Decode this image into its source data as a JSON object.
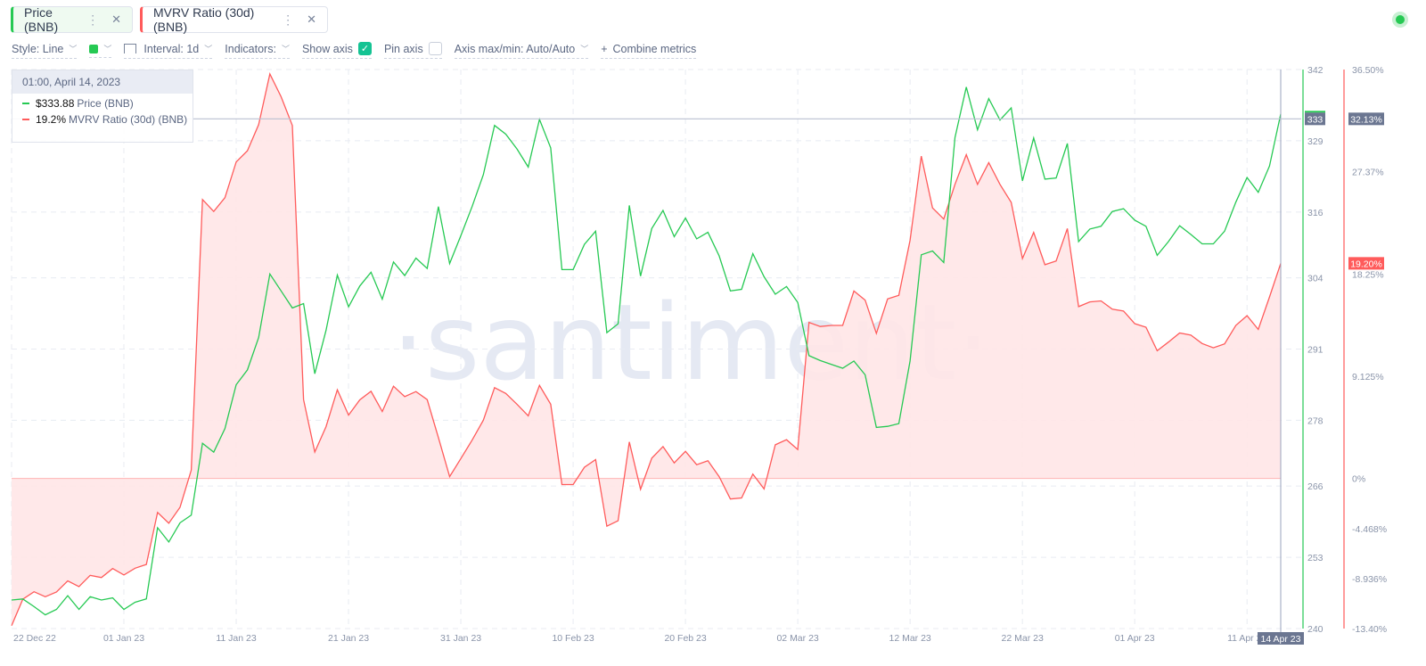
{
  "metrics": [
    {
      "label": "Price (BNB)",
      "color": "#26c953",
      "menu_icon": "vertical-dots-icon",
      "close_icon": "close-icon"
    },
    {
      "label": "MVRV Ratio (30d) (BNB)",
      "color": "#ff5b5b",
      "menu_icon": "vertical-dots-icon",
      "close_icon": "close-icon"
    }
  ],
  "toolbar": {
    "style": "Style: Line",
    "interval": "Interval: 1d",
    "indicators": "Indicators:",
    "show_axis": "Show axis",
    "show_axis_checked": true,
    "pin_axis": "Pin axis",
    "pin_axis_checked": false,
    "axis_maxmin": "Axis max/min: Auto/Auto",
    "combine": "Combine metrics",
    "combine_icon": "+"
  },
  "tooltip": {
    "datetime": "01:00, April 14, 2023",
    "rows": [
      {
        "value": "$333.88",
        "name": "Price (BNB)",
        "color": "#26c953"
      },
      {
        "value": "19.2%",
        "name": "MVRV Ratio (30d) (BNB)",
        "color": "#ff5b5b"
      }
    ]
  },
  "watermark": "·santiment·",
  "status": {
    "color": "#26c953"
  },
  "chart_data": {
    "type": "line",
    "x": [
      "2022-12-22",
      "2022-12-23",
      "2022-12-24",
      "2022-12-25",
      "2022-12-26",
      "2022-12-27",
      "2022-12-28",
      "2022-12-29",
      "2022-12-30",
      "2022-12-31",
      "2023-01-01",
      "2023-01-02",
      "2023-01-03",
      "2023-01-04",
      "2023-01-05",
      "2023-01-06",
      "2023-01-07",
      "2023-01-08",
      "2023-01-09",
      "2023-01-10",
      "2023-01-11",
      "2023-01-12",
      "2023-01-13",
      "2023-01-14",
      "2023-01-15",
      "2023-01-16",
      "2023-01-17",
      "2023-01-18",
      "2023-01-19",
      "2023-01-20",
      "2023-01-21",
      "2023-01-22",
      "2023-01-23",
      "2023-01-24",
      "2023-01-25",
      "2023-01-26",
      "2023-01-27",
      "2023-01-28",
      "2023-01-29",
      "2023-01-30",
      "2023-01-31",
      "2023-02-01",
      "2023-02-02",
      "2023-02-03",
      "2023-02-04",
      "2023-02-05",
      "2023-02-06",
      "2023-02-07",
      "2023-02-08",
      "2023-02-09",
      "2023-02-10",
      "2023-02-11",
      "2023-02-12",
      "2023-02-13",
      "2023-02-14",
      "2023-02-15",
      "2023-02-16",
      "2023-02-17",
      "2023-02-18",
      "2023-02-19",
      "2023-02-20",
      "2023-02-21",
      "2023-02-22",
      "2023-02-23",
      "2023-02-24",
      "2023-02-25",
      "2023-02-26",
      "2023-02-27",
      "2023-02-28",
      "2023-03-01",
      "2023-03-02",
      "2023-03-03",
      "2023-03-04",
      "2023-03-05",
      "2023-03-06",
      "2023-03-07",
      "2023-03-08",
      "2023-03-09",
      "2023-03-10",
      "2023-03-11",
      "2023-03-12",
      "2023-03-13",
      "2023-03-14",
      "2023-03-15",
      "2023-03-16",
      "2023-03-17",
      "2023-03-18",
      "2023-03-19",
      "2023-03-20",
      "2023-03-21",
      "2023-03-22",
      "2023-03-23",
      "2023-03-24",
      "2023-03-25",
      "2023-03-26",
      "2023-03-27",
      "2023-03-28",
      "2023-03-29",
      "2023-03-30",
      "2023-03-31",
      "2023-04-01",
      "2023-04-02",
      "2023-04-03",
      "2023-04-04",
      "2023-04-05",
      "2023-04-06",
      "2023-04-07",
      "2023-04-08",
      "2023-04-09",
      "2023-04-10",
      "2023-04-11",
      "2023-04-12",
      "2023-04-13",
      "2023-04-14"
    ],
    "series": [
      {
        "name": "Price (BNB)",
        "axis": "left-of-right",
        "color": "#26c953",
        "unit": "$",
        "values": [
          245.2,
          245.4,
          244.0,
          242.5,
          243.5,
          246.0,
          243.5,
          245.8,
          245.2,
          245.6,
          243.5,
          244.8,
          245.4,
          258.4,
          255.8,
          259.3,
          260.7,
          273.8,
          272.2,
          276.5,
          284.5,
          287.2,
          293.1,
          304.7,
          301.6,
          298.5,
          299.3,
          286.5,
          294.4,
          304.5,
          298.7,
          302.5,
          305.0,
          300.1,
          306.9,
          304.4,
          307.6,
          305.7,
          317.0,
          306.6,
          311.7,
          317.0,
          322.8,
          331.8,
          330.2,
          327.5,
          324.2,
          332.9,
          327.7,
          305.5,
          305.5,
          310.1,
          312.5,
          294.0,
          295.6,
          317.2,
          304.3,
          313.0,
          316.3,
          311.5,
          314.9,
          311.1,
          312.3,
          308.0,
          301.6,
          301.9,
          308.4,
          304.2,
          301.0,
          302.4,
          299.5,
          289.8,
          288.9,
          288.2,
          287.5,
          288.8,
          286.3,
          276.7,
          276.9,
          277.4,
          288.8,
          308.2,
          308.9,
          306.8,
          329.6,
          338.8,
          331.0,
          336.7,
          332.8,
          335.0,
          321.7,
          329.5,
          322.0,
          322.2,
          328.5,
          310.6,
          312.9,
          313.4,
          316.1,
          316.6,
          314.5,
          313.4,
          308.1,
          310.6,
          313.5,
          311.9,
          310.2,
          310.2,
          312.5,
          317.8,
          322.3,
          319.6,
          324.4,
          333.88
        ]
      },
      {
        "name": "MVRV Ratio (30d) (BNB)",
        "axis": "right",
        "color": "#ff5b5b",
        "unit": "%",
        "fill": "#ffe5e7",
        "values": [
          -13.14,
          -10.78,
          -10.11,
          -10.56,
          -10.14,
          -9.14,
          -9.65,
          -8.65,
          -8.85,
          -8.04,
          -8.62,
          -8.01,
          -7.68,
          -3.04,
          -4.0,
          -2.58,
          0.74,
          24.9,
          23.83,
          25.06,
          28.25,
          29.25,
          31.58,
          36.1,
          34.07,
          31.51,
          7.04,
          2.36,
          4.62,
          7.91,
          5.65,
          7.01,
          7.78,
          5.97,
          8.23,
          7.3,
          7.75,
          7.04,
          3.65,
          0.16,
          1.78,
          3.42,
          5.2,
          8.1,
          7.59,
          6.62,
          5.59,
          8.3,
          6.62,
          -0.55,
          -0.55,
          1.0,
          1.68,
          -4.26,
          -3.78,
          3.26,
          -0.97,
          1.81,
          2.84,
          1.39,
          2.42,
          1.23,
          1.58,
          0.16,
          -1.84,
          -1.74,
          0.39,
          -0.94,
          3.0,
          3.46,
          2.58,
          13.92,
          13.56,
          13.66,
          13.66,
          16.73,
          15.92,
          12.95,
          16.02,
          16.34,
          21.25,
          28.77,
          24.15,
          23.15,
          26.25,
          28.9,
          26.25,
          28.19,
          26.25,
          24.64,
          19.63,
          21.96,
          19.08,
          19.41,
          22.31,
          15.34,
          15.76,
          15.85,
          15.11,
          14.95,
          13.82,
          13.5,
          11.4,
          12.17,
          12.98,
          12.79,
          12.04,
          11.66,
          12.01,
          13.66,
          14.53,
          13.3,
          16.2,
          19.2
        ]
      }
    ],
    "x_ticks": [
      {
        "date": "2022-12-22",
        "label": "22 Dec 22"
      },
      {
        "date": "2023-01-01",
        "label": "01 Jan 23"
      },
      {
        "date": "2023-01-11",
        "label": "11 Jan 23"
      },
      {
        "date": "2023-01-21",
        "label": "21 Jan 23"
      },
      {
        "date": "2023-01-31",
        "label": "31 Jan 23"
      },
      {
        "date": "2023-02-10",
        "label": "10 Feb 23"
      },
      {
        "date": "2023-02-20",
        "label": "20 Feb 23"
      },
      {
        "date": "2023-03-02",
        "label": "02 Mar 23"
      },
      {
        "date": "2023-03-12",
        "label": "12 Mar 23"
      },
      {
        "date": "2023-03-22",
        "label": "22 Mar 23"
      },
      {
        "date": "2023-04-01",
        "label": "01 Apr 23"
      },
      {
        "date": "2023-04-11",
        "label": "11 Apr 23"
      }
    ],
    "price_axis": {
      "range": [
        240,
        342
      ],
      "ticks": [
        "342",
        "329",
        "316",
        "304",
        "291",
        "278",
        "266",
        "253",
        "240"
      ],
      "color": "#26c953"
    },
    "mvrv_axis": {
      "range": [
        -13.4,
        36.5
      ],
      "ticks": [
        {
          "v": 36.5,
          "label": "36.50%"
        },
        {
          "v": 27.37,
          "label": "27.37%"
        },
        {
          "v": 18.25,
          "label": "18.25%"
        },
        {
          "v": 9.125,
          "label": "9.125%"
        },
        {
          "v": 0,
          "label": "0%"
        },
        {
          "v": -4.468,
          "label": "-4.468%"
        },
        {
          "v": -8.936,
          "label": "-8.936%"
        },
        {
          "v": -13.4,
          "label": "-13.40%"
        }
      ],
      "color": "#ff5b5b"
    },
    "crosshair": {
      "date": "2023-04-14",
      "date_label": "14 Apr 23",
      "price_label": "333",
      "price_value": 333,
      "mvrv_label": "32.13%"
    },
    "last_value_badge": {
      "label": "19.20%",
      "value": 19.2,
      "color": "#ff5b5b"
    },
    "grid": true
  }
}
